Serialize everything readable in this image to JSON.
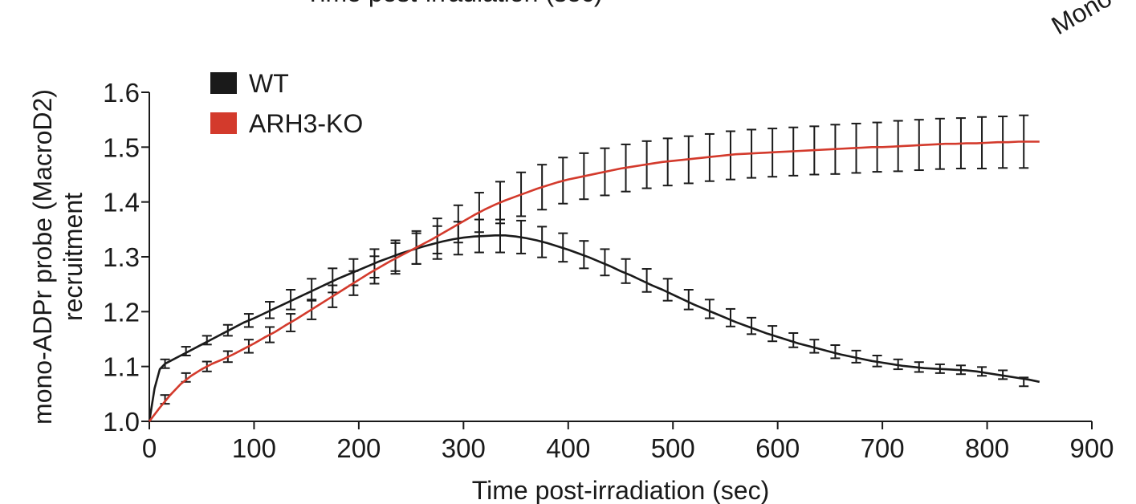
{
  "cropped_text": {
    "top": "Time post-irradiation (sec)",
    "top_right": "Mono"
  },
  "chart_data": {
    "type": "line",
    "title": "",
    "xlabel": "Time post-irradiation (sec)",
    "ylabel": "mono-ADPr probe (MacroD2)",
    "ylabel2": "recruitment",
    "xlim": [
      0,
      900
    ],
    "ylim": [
      1.0,
      1.6
    ],
    "xticks": [
      "0",
      "100",
      "200",
      "300",
      "400",
      "500",
      "600",
      "700",
      "800",
      "900"
    ],
    "yticks": [
      "1.0",
      "1.1",
      "1.2",
      "1.3",
      "1.4",
      "1.5",
      "1.6"
    ],
    "grid": false,
    "legend_position": "top-left",
    "series": [
      {
        "name": "WT",
        "color": "#1a1a1a",
        "x": [
          0,
          5,
          10,
          15,
          20,
          30,
          40,
          50,
          60,
          70,
          80,
          90,
          100,
          110,
          120,
          130,
          140,
          150,
          160,
          170,
          180,
          190,
          200,
          210,
          220,
          230,
          240,
          250,
          260,
          270,
          280,
          290,
          300,
          310,
          320,
          330,
          340,
          350,
          360,
          370,
          380,
          390,
          400,
          410,
          420,
          430,
          440,
          450,
          460,
          470,
          480,
          490,
          500,
          510,
          520,
          530,
          540,
          550,
          560,
          570,
          580,
          590,
          600,
          610,
          620,
          630,
          640,
          650,
          660,
          670,
          680,
          690,
          700,
          710,
          720,
          730,
          740,
          750,
          760,
          770,
          780,
          790,
          800,
          810,
          820,
          830,
          840,
          850
        ],
        "y": [
          1.0,
          1.06,
          1.095,
          1.105,
          1.11,
          1.12,
          1.13,
          1.14,
          1.15,
          1.16,
          1.17,
          1.18,
          1.188,
          1.197,
          1.206,
          1.215,
          1.224,
          1.233,
          1.242,
          1.251,
          1.26,
          1.268,
          1.276,
          1.284,
          1.292,
          1.299,
          1.306,
          1.312,
          1.318,
          1.323,
          1.328,
          1.332,
          1.335,
          1.337,
          1.338,
          1.339,
          1.339,
          1.337,
          1.334,
          1.33,
          1.325,
          1.319,
          1.313,
          1.306,
          1.299,
          1.291,
          1.283,
          1.274,
          1.266,
          1.257,
          1.248,
          1.24,
          1.231,
          1.222,
          1.213,
          1.205,
          1.197,
          1.189,
          1.181,
          1.174,
          1.167,
          1.16,
          1.154,
          1.148,
          1.142,
          1.137,
          1.132,
          1.127,
          1.122,
          1.118,
          1.114,
          1.11,
          1.107,
          1.104,
          1.101,
          1.099,
          1.097,
          1.096,
          1.095,
          1.094,
          1.093,
          1.091,
          1.088,
          1.085,
          1.082,
          1.079,
          1.076,
          1.072
        ],
        "error_x": [
          15,
          35,
          55,
          75,
          95,
          115,
          135,
          155,
          175,
          195,
          215,
          235,
          255,
          275,
          295,
          315,
          335,
          355,
          375,
          395,
          415,
          435,
          455,
          475,
          495,
          515,
          535,
          555,
          575,
          595,
          615,
          635,
          655,
          675,
          695,
          715,
          735,
          755,
          775,
          795,
          815,
          835
        ],
        "error_y": [
          1.105,
          1.128,
          1.148,
          1.166,
          1.184,
          1.203,
          1.222,
          1.24,
          1.257,
          1.272,
          1.288,
          1.302,
          1.315,
          1.326,
          1.334,
          1.338,
          1.338,
          1.336,
          1.327,
          1.317,
          1.304,
          1.29,
          1.274,
          1.257,
          1.24,
          1.222,
          1.205,
          1.189,
          1.174,
          1.16,
          1.148,
          1.137,
          1.127,
          1.118,
          1.11,
          1.104,
          1.099,
          1.096,
          1.094,
          1.091,
          1.085,
          1.072
        ],
        "error_err": [
          0.008,
          0.008,
          0.008,
          0.01,
          0.012,
          0.015,
          0.018,
          0.02,
          0.022,
          0.024,
          0.026,
          0.028,
          0.028,
          0.03,
          0.03,
          0.03,
          0.03,
          0.03,
          0.028,
          0.026,
          0.025,
          0.024,
          0.022,
          0.021,
          0.02,
          0.018,
          0.017,
          0.016,
          0.015,
          0.014,
          0.013,
          0.012,
          0.012,
          0.011,
          0.01,
          0.009,
          0.009,
          0.008,
          0.008,
          0.008,
          0.008,
          0.008
        ]
      },
      {
        "name": "ARH3-KO",
        "color": "#d33a2c",
        "x": [
          0,
          10,
          20,
          30,
          40,
          50,
          60,
          70,
          80,
          90,
          100,
          110,
          120,
          130,
          140,
          150,
          160,
          170,
          180,
          190,
          200,
          210,
          220,
          230,
          240,
          250,
          260,
          270,
          280,
          290,
          300,
          310,
          320,
          330,
          340,
          350,
          360,
          370,
          380,
          390,
          400,
          410,
          420,
          430,
          440,
          450,
          460,
          470,
          480,
          490,
          500,
          510,
          520,
          530,
          540,
          550,
          560,
          570,
          580,
          590,
          600,
          610,
          620,
          630,
          640,
          650,
          660,
          670,
          680,
          690,
          700,
          710,
          720,
          730,
          740,
          750,
          760,
          770,
          780,
          790,
          800,
          810,
          820,
          830,
          840,
          850
        ],
        "y": [
          1.0,
          1.025,
          1.048,
          1.068,
          1.083,
          1.095,
          1.105,
          1.113,
          1.122,
          1.132,
          1.142,
          1.153,
          1.163,
          1.175,
          1.186,
          1.198,
          1.21,
          1.222,
          1.234,
          1.246,
          1.258,
          1.27,
          1.281,
          1.292,
          1.302,
          1.312,
          1.322,
          1.332,
          1.343,
          1.354,
          1.365,
          1.376,
          1.386,
          1.395,
          1.403,
          1.41,
          1.417,
          1.424,
          1.43,
          1.436,
          1.441,
          1.445,
          1.449,
          1.453,
          1.457,
          1.461,
          1.464,
          1.467,
          1.47,
          1.473,
          1.475,
          1.477,
          1.479,
          1.481,
          1.483,
          1.485,
          1.487,
          1.488,
          1.489,
          1.49,
          1.491,
          1.492,
          1.493,
          1.494,
          1.495,
          1.496,
          1.497,
          1.498,
          1.499,
          1.5,
          1.5,
          1.501,
          1.502,
          1.503,
          1.504,
          1.505,
          1.506,
          1.506,
          1.507,
          1.507,
          1.508,
          1.509,
          1.509,
          1.51,
          1.51,
          1.51
        ],
        "error_x": [
          15,
          35,
          55,
          75,
          95,
          115,
          135,
          155,
          175,
          195,
          215,
          235,
          255,
          275,
          295,
          315,
          335,
          355,
          375,
          395,
          415,
          435,
          455,
          475,
          495,
          515,
          535,
          555,
          575,
          595,
          615,
          635,
          655,
          675,
          695,
          715,
          735,
          755,
          775,
          795,
          815,
          835
        ],
        "error_y": [
          1.04,
          1.08,
          1.1,
          1.118,
          1.137,
          1.158,
          1.18,
          1.204,
          1.228,
          1.252,
          1.276,
          1.297,
          1.317,
          1.338,
          1.36,
          1.381,
          1.399,
          1.414,
          1.427,
          1.439,
          1.447,
          1.455,
          1.462,
          1.468,
          1.473,
          1.477,
          1.481,
          1.485,
          1.488,
          1.49,
          1.492,
          1.494,
          1.496,
          1.498,
          1.5,
          1.502,
          1.504,
          1.506,
          1.507,
          1.508,
          1.509,
          1.51
        ],
        "error_err": [
          0.008,
          0.008,
          0.009,
          0.01,
          0.012,
          0.014,
          0.016,
          0.018,
          0.02,
          0.022,
          0.025,
          0.028,
          0.03,
          0.032,
          0.034,
          0.036,
          0.038,
          0.04,
          0.041,
          0.042,
          0.042,
          0.043,
          0.043,
          0.043,
          0.043,
          0.043,
          0.043,
          0.044,
          0.044,
          0.044,
          0.044,
          0.044,
          0.045,
          0.045,
          0.045,
          0.046,
          0.046,
          0.046,
          0.046,
          0.047,
          0.047,
          0.048
        ]
      }
    ]
  }
}
